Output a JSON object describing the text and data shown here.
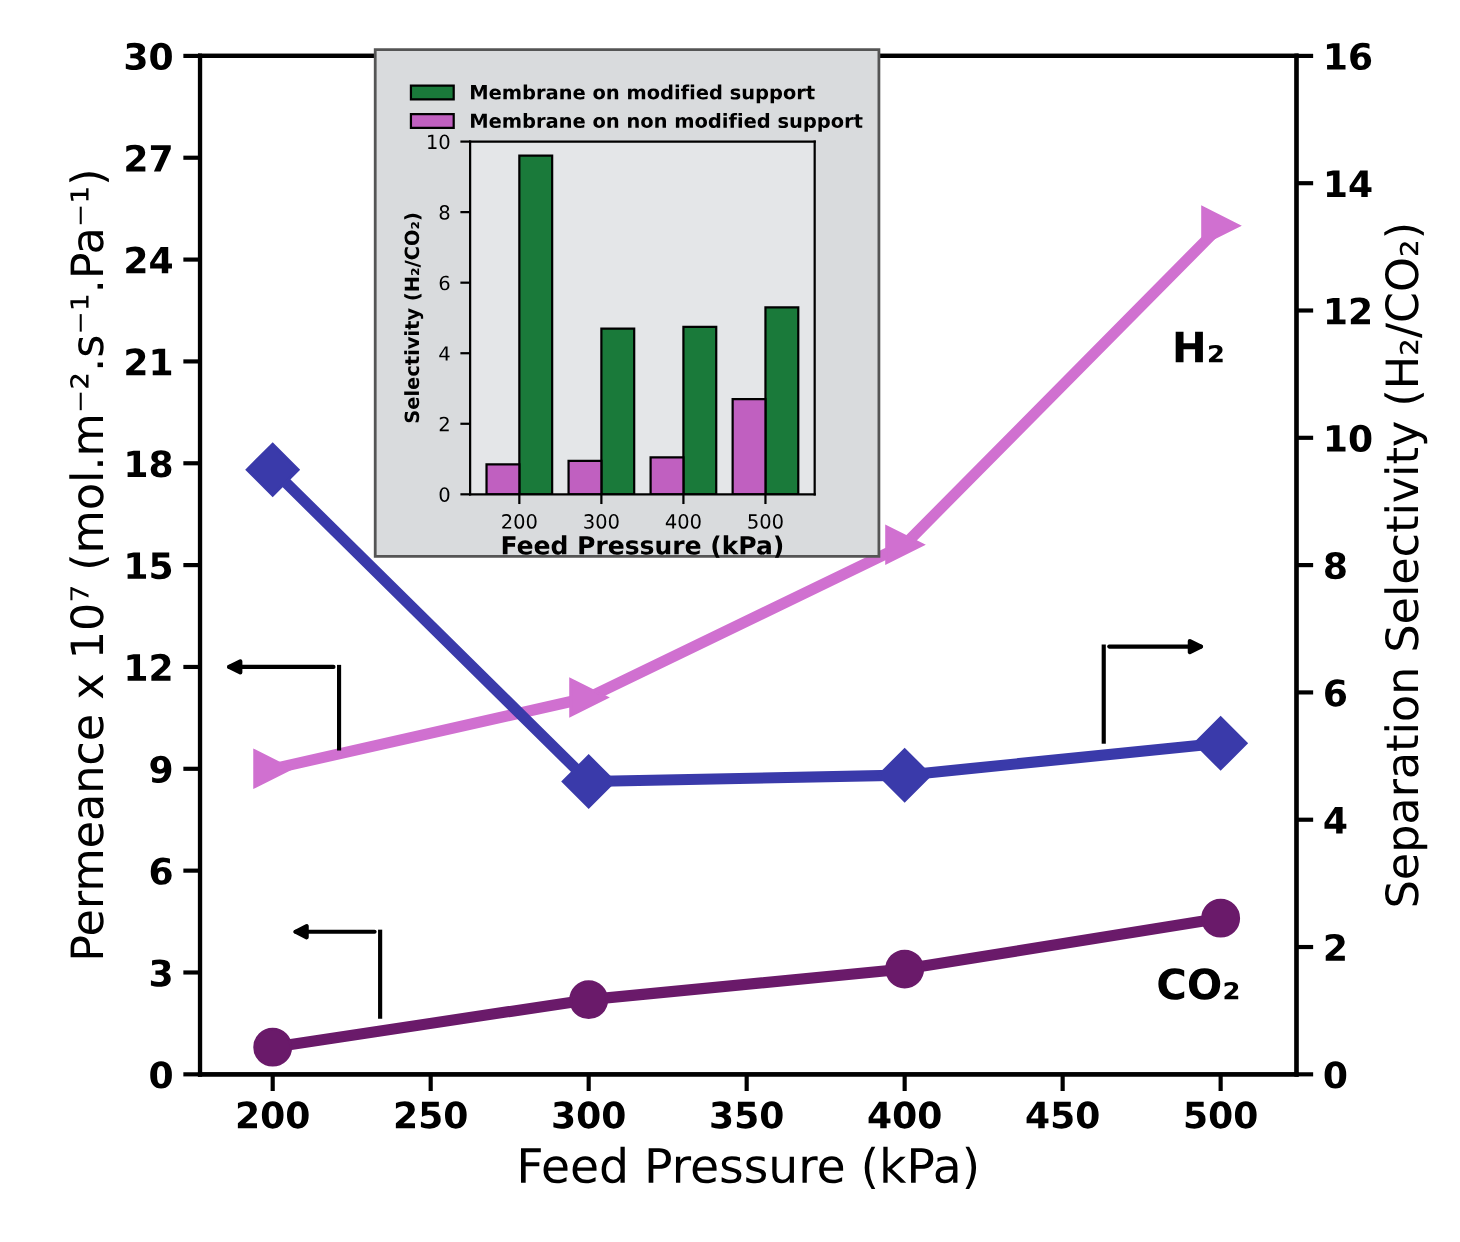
{
  "chart_data": [
    {
      "type": "line",
      "xlabel": "Feed Pressure (kPa)",
      "ylabel": "Permeance x 10⁷ (mol.m⁻².s⁻¹.Pa⁻¹)",
      "y2label": "Separation Selectivity (H₂/CO₂)",
      "x": [
        200,
        300,
        400,
        500
      ],
      "series": [
        {
          "name": "H₂",
          "color": "#d070d0",
          "marker": "triangle",
          "values": [
            9.0,
            11.1,
            15.6,
            25.0
          ]
        },
        {
          "name": "CO₂",
          "color": "#6a1a6a",
          "marker": "circle",
          "values": [
            0.8,
            2.2,
            3.1,
            4.6
          ]
        },
        {
          "color": "#3a3aaa",
          "marker": "diamond",
          "axis": "y2",
          "values": [
            9.5,
            4.6,
            4.7,
            5.2
          ]
        }
      ],
      "xlim": [
        177,
        524
      ],
      "xticks": [
        200,
        250,
        300,
        350,
        400,
        450,
        500
      ],
      "ylim": [
        0,
        30
      ],
      "yticks": [
        0,
        3,
        6,
        9,
        12,
        15,
        18,
        21,
        24,
        27,
        30
      ],
      "y2lim": [
        0,
        16
      ],
      "y2ticks": [
        0,
        2,
        4,
        6,
        8,
        10,
        12,
        14,
        16
      ],
      "grid": false
    },
    {
      "type": "bar",
      "xlabel": "Feed Pressure (kPa)",
      "ylabel": "Selectivity (H₂/CO₂)",
      "categories": [
        "200",
        "300",
        "400",
        "500"
      ],
      "series": [
        {
          "name": "Membrane on modified support",
          "color": "#1a7a3a",
          "values": [
            9.6,
            4.7,
            4.75,
            5.3
          ]
        },
        {
          "name": "Membrane on non modified support",
          "color": "#c060c0",
          "values": [
            0.85,
            0.95,
            1.05,
            2.7
          ]
        }
      ],
      "ylim": [
        0,
        10
      ],
      "yticks": [
        0,
        2,
        4,
        6,
        8,
        10
      ],
      "grid": false,
      "legend": "top"
    }
  ]
}
